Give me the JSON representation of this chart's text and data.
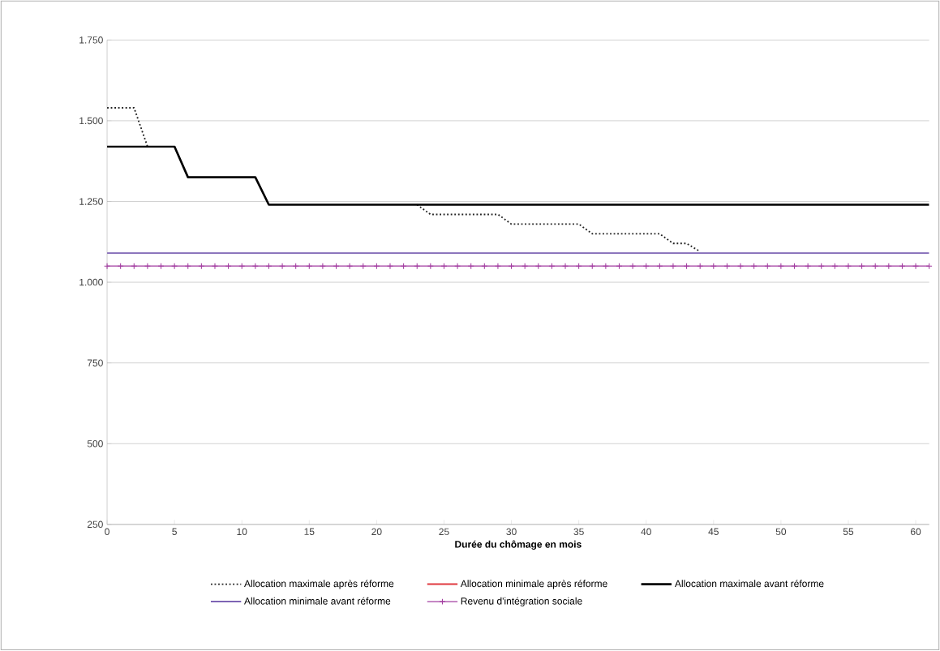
{
  "chart_data": {
    "type": "line",
    "xlabel": "Durée du chômage en mois",
    "x": [
      0,
      1,
      2,
      3,
      4,
      5,
      6,
      7,
      8,
      9,
      10,
      11,
      12,
      13,
      14,
      15,
      16,
      17,
      18,
      19,
      20,
      21,
      22,
      23,
      24,
      25,
      26,
      27,
      28,
      29,
      30,
      31,
      32,
      33,
      34,
      35,
      36,
      37,
      38,
      39,
      40,
      41,
      42,
      43,
      44,
      45,
      46,
      47,
      48,
      49,
      50,
      51,
      52,
      53,
      54,
      55,
      56,
      57,
      58,
      59,
      60,
      61
    ],
    "series": [
      {
        "name": "Allocation maximale après réforme",
        "color": "#222222",
        "line_style": "dotted",
        "marker": "none",
        "values": [
          1540,
          1540,
          1540,
          1420,
          null,
          null,
          null,
          null,
          null,
          null,
          null,
          null,
          null,
          null,
          null,
          null,
          null,
          null,
          null,
          null,
          null,
          null,
          null,
          1240,
          1210,
          1210,
          1210,
          1210,
          1210,
          1210,
          1180,
          1180,
          1180,
          1180,
          1180,
          1180,
          1150,
          1150,
          1150,
          1150,
          1150,
          1150,
          1120,
          1120,
          1095,
          null,
          null,
          null,
          null,
          null,
          null,
          null,
          null,
          null,
          null,
          null,
          null,
          null,
          null,
          null,
          null,
          null
        ]
      },
      {
        "name": "Allocation minimale après réforme",
        "color": "#e0393e",
        "line_style": "solid",
        "marker": "none",
        "values": [
          null,
          null,
          null,
          null,
          null,
          null,
          null,
          null,
          null,
          null,
          null,
          null,
          null,
          null,
          null,
          null,
          null,
          null,
          null,
          null,
          null,
          null,
          null,
          null,
          null,
          null,
          null,
          null,
          null,
          null,
          null,
          null,
          null,
          null,
          null,
          null,
          null,
          null,
          null,
          null,
          null,
          null,
          null,
          null,
          null,
          null,
          null,
          null,
          null,
          null,
          null,
          null,
          null,
          null,
          null,
          null,
          null,
          null,
          null,
          null,
          null,
          null
        ]
      },
      {
        "name": "Allocation maximale avant réforme",
        "color": "#000000",
        "line_style": "solid",
        "marker": "none",
        "values": [
          1420,
          1420,
          1420,
          1420,
          1420,
          1420,
          1325,
          1325,
          1325,
          1325,
          1325,
          1325,
          1240,
          1240,
          1240,
          1240,
          1240,
          1240,
          1240,
          1240,
          1240,
          1240,
          1240,
          1240,
          1240,
          1240,
          1240,
          1240,
          1240,
          1240,
          1240,
          1240,
          1240,
          1240,
          1240,
          1240,
          1240,
          1240,
          1240,
          1240,
          1240,
          1240,
          1240,
          1240,
          1240,
          1240,
          1240,
          1240,
          1240,
          1240,
          1240,
          1240,
          1240,
          1240,
          1240,
          1240,
          1240,
          1240,
          1240,
          1240,
          1240,
          1240
        ]
      },
      {
        "name": "Allocation minimale avant réforme",
        "color": "#7e64b4",
        "line_style": "solid",
        "marker": "none",
        "values": [
          1090,
          1090,
          1090,
          1090,
          1090,
          1090,
          1090,
          1090,
          1090,
          1090,
          1090,
          1090,
          1090,
          1090,
          1090,
          1090,
          1090,
          1090,
          1090,
          1090,
          1090,
          1090,
          1090,
          1090,
          1090,
          1090,
          1090,
          1090,
          1090,
          1090,
          1090,
          1090,
          1090,
          1090,
          1090,
          1090,
          1090,
          1090,
          1090,
          1090,
          1090,
          1090,
          1090,
          1090,
          1090,
          1090,
          1090,
          1090,
          1090,
          1090,
          1090,
          1090,
          1090,
          1090,
          1090,
          1090,
          1090,
          1090,
          1090,
          1090,
          1090,
          1090
        ]
      },
      {
        "name": "Revenu d'intégration sociale",
        "color": "#a23ca0",
        "line_style": "solid",
        "marker": "cross",
        "values": [
          1050,
          1050,
          1050,
          1050,
          1050,
          1050,
          1050,
          1050,
          1050,
          1050,
          1050,
          1050,
          1050,
          1050,
          1050,
          1050,
          1050,
          1050,
          1050,
          1050,
          1050,
          1050,
          1050,
          1050,
          1050,
          1050,
          1050,
          1050,
          1050,
          1050,
          1050,
          1050,
          1050,
          1050,
          1050,
          1050,
          1050,
          1050,
          1050,
          1050,
          1050,
          1050,
          1050,
          1050,
          1050,
          1050,
          1050,
          1050,
          1050,
          1050,
          1050,
          1050,
          1050,
          1050,
          1050,
          1050,
          1050,
          1050,
          1050,
          1050,
          1050,
          1050
        ]
      }
    ],
    "xlim": [
      0,
      61
    ],
    "xticks": [
      0,
      5,
      10,
      15,
      20,
      25,
      30,
      35,
      40,
      45,
      50,
      55,
      60
    ],
    "ylim": [
      250,
      1750
    ],
    "yticks": [
      {
        "value": 250,
        "label": "250"
      },
      {
        "value": 500,
        "label": "500"
      },
      {
        "value": 750,
        "label": "750"
      },
      {
        "value": 1000,
        "label": "1.000"
      },
      {
        "value": 1250,
        "label": "1.250"
      },
      {
        "value": 1500,
        "label": "1.500"
      },
      {
        "value": 1750,
        "label": "1.750"
      }
    ],
    "grid": "y",
    "legend": "bottom"
  }
}
